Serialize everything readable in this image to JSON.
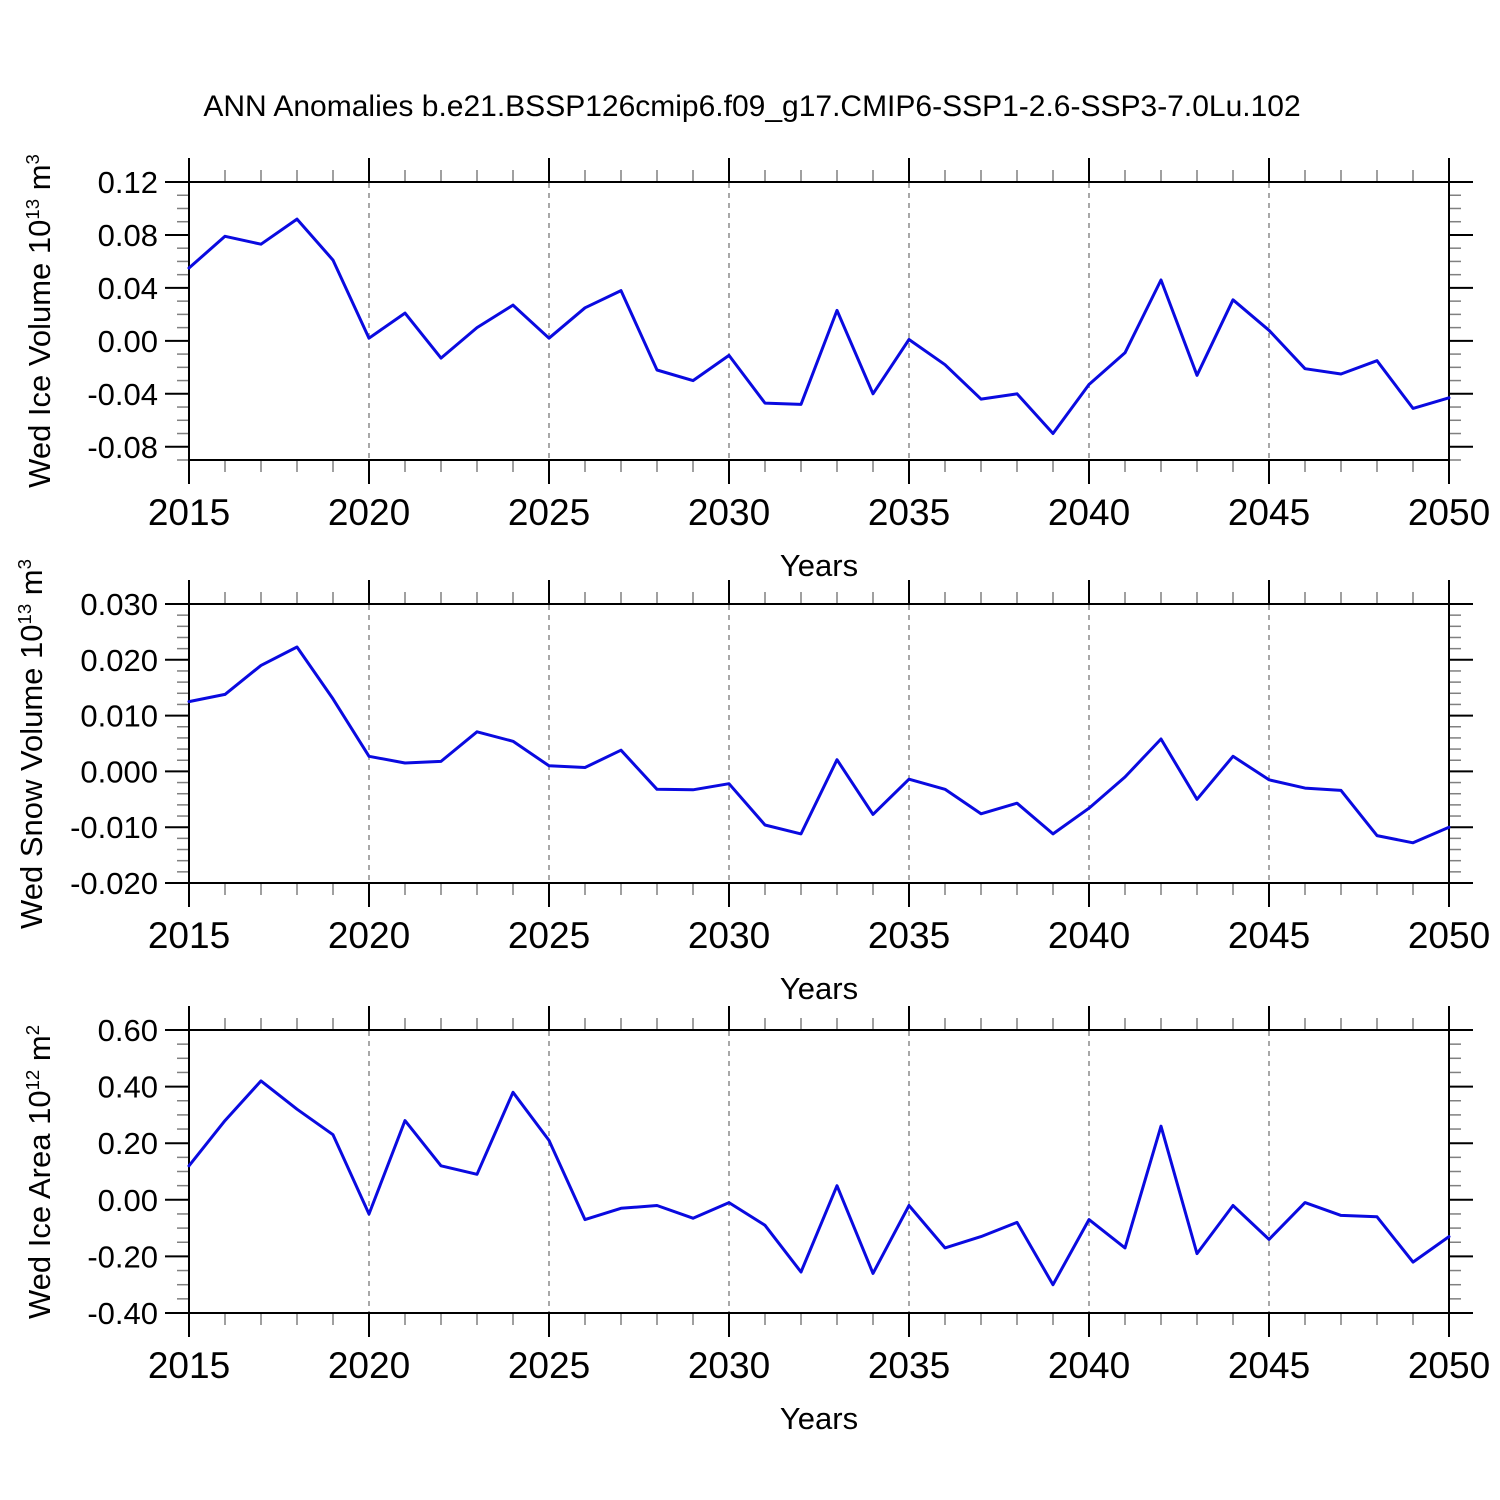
{
  "title": "ANN Anomalies b.e21.BSSP126cmip6.f09_g17.CMIP6-SSP1-2.6-SSP3-7.0Lu.102",
  "colors": {
    "line": "#0a0ae0",
    "grid_dashed": "#a8a8a8",
    "frame": "#000000",
    "minor_tick": "#808080",
    "text": "#000000",
    "background": "#ffffff"
  },
  "years": [
    2015,
    2016,
    2017,
    2018,
    2019,
    2020,
    2021,
    2022,
    2023,
    2024,
    2025,
    2026,
    2027,
    2028,
    2029,
    2030,
    2031,
    2032,
    2033,
    2034,
    2035,
    2036,
    2037,
    2038,
    2039,
    2040,
    2041,
    2042,
    2043,
    2044,
    2045,
    2046,
    2047,
    2048,
    2049,
    2050
  ],
  "x_major_ticks": [
    2015,
    2020,
    2025,
    2030,
    2035,
    2040,
    2045,
    2050
  ],
  "x_major_labels": [
    "2015",
    "2020",
    "2025",
    "2030",
    "2035",
    "2040",
    "2045",
    "2050"
  ],
  "grid_years": [
    2020,
    2025,
    2030,
    2035,
    2040,
    2045
  ],
  "chart_data": [
    {
      "type": "line",
      "series_name": "Wed Ice Volume anomaly",
      "xlabel": "Years",
      "ylabel_text": "Wed Ice Volume 10^13 m^3",
      "ylabel_parts": {
        "base": "Wed Ice Volume 10",
        "exp": "13",
        "unit": " m",
        "unit_exp": "3"
      },
      "xlim": [
        2015,
        2050
      ],
      "ylim": [
        -0.09,
        0.12
      ],
      "ytick_values": [
        0.12,
        0.08,
        0.04,
        0.0,
        -0.04,
        -0.08
      ],
      "ytick_labels": [
        "0.12",
        "0.08",
        "0.04",
        "0.00",
        "-0.04",
        "-0.08"
      ],
      "y_minor_step": 0.01,
      "grid": "vertical-dashed",
      "values": [
        0.055,
        0.079,
        0.073,
        0.092,
        0.061,
        0.002,
        0.021,
        -0.013,
        0.01,
        0.027,
        0.002,
        0.025,
        0.038,
        -0.022,
        -0.03,
        -0.011,
        -0.047,
        -0.048,
        0.023,
        -0.04,
        0.001,
        -0.018,
        -0.044,
        -0.04,
        -0.07,
        -0.033,
        -0.009,
        0.046,
        -0.026,
        0.031,
        0.008,
        -0.021,
        -0.025,
        -0.015,
        -0.051,
        -0.043
      ]
    },
    {
      "type": "line",
      "series_name": "Wed Snow Volume anomaly",
      "xlabel": "Years",
      "ylabel_text": "Wed Snow Volume 10^13 m^3",
      "ylabel_parts": {
        "base": "Wed Snow Volume 10",
        "exp": "13",
        "unit": " m",
        "unit_exp": "3"
      },
      "xlim": [
        2015,
        2050
      ],
      "ylim": [
        -0.02,
        0.03
      ],
      "ytick_values": [
        0.03,
        0.02,
        0.01,
        0.0,
        -0.01,
        -0.02
      ],
      "ytick_labels": [
        "0.030",
        "0.020",
        "0.010",
        "0.000",
        "-0.010",
        "-0.020"
      ],
      "y_minor_step": 0.002,
      "grid": "vertical-dashed",
      "values": [
        0.0125,
        0.0138,
        0.019,
        0.0223,
        0.013,
        0.0027,
        0.0015,
        0.0018,
        0.0071,
        0.0054,
        0.001,
        0.0007,
        0.0038,
        -0.0032,
        -0.0033,
        -0.0022,
        -0.0096,
        -0.0112,
        0.0021,
        -0.0077,
        -0.0014,
        -0.0032,
        -0.0076,
        -0.0057,
        -0.0112,
        -0.0066,
        -0.001,
        0.0058,
        -0.005,
        0.0027,
        -0.0015,
        -0.003,
        -0.0034,
        -0.0115,
        -0.0128,
        -0.01
      ]
    },
    {
      "type": "line",
      "series_name": "Wed Ice Area anomaly",
      "xlabel": "Years",
      "ylabel_text": "Wed Ice Area 10^12 m^2",
      "ylabel_parts": {
        "base": "Wed Ice Area 10",
        "exp": "12",
        "unit": " m",
        "unit_exp": "2"
      },
      "xlim": [
        2015,
        2050
      ],
      "ylim": [
        -0.4,
        0.6
      ],
      "ytick_values": [
        0.6,
        0.4,
        0.2,
        0.0,
        -0.2,
        -0.4
      ],
      "ytick_labels": [
        "0.60",
        "0.40",
        "0.20",
        "0.00",
        "-0.20",
        "-0.40"
      ],
      "y_minor_step": 0.05,
      "grid": "vertical-dashed",
      "values": [
        0.12,
        0.28,
        0.42,
        0.32,
        0.23,
        -0.05,
        0.28,
        0.12,
        0.09,
        0.38,
        0.21,
        -0.07,
        -0.03,
        -0.02,
        -0.065,
        -0.01,
        -0.09,
        -0.255,
        0.05,
        -0.26,
        -0.02,
        -0.17,
        -0.13,
        -0.08,
        -0.3,
        -0.07,
        -0.17,
        0.26,
        -0.19,
        -0.02,
        -0.14,
        -0.01,
        -0.055,
        -0.06,
        -0.22,
        -0.13
      ]
    }
  ]
}
